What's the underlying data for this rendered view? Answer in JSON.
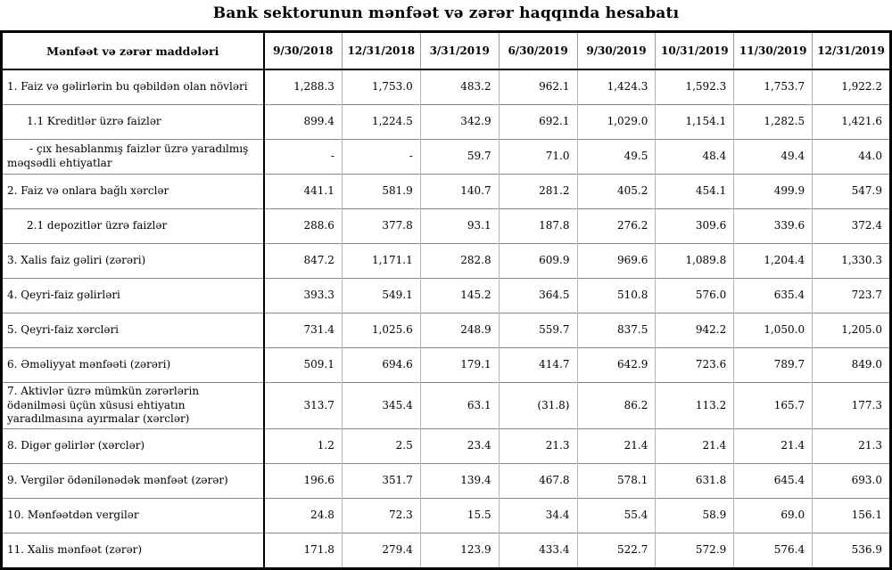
{
  "title": "Bank sektorunun mənfəət və zərər haqqında hesabatı",
  "table": {
    "header": [
      "Mənfəət və zərər maddələri",
      "9/30/2018",
      "12/31/2018",
      "3/31/2019",
      "6/30/2019",
      "9/30/2019",
      "10/31/2019",
      "11/30/2019",
      "12/31/2019"
    ],
    "rows": [
      {
        "label": "1. Faiz və gəlirlərin bu qəbildən olan növləri",
        "indent": 0,
        "values": [
          "1,288.3",
          "1,753.0",
          "483.2",
          "962.1",
          "1,424.3",
          "1,592.3",
          "1,753.7",
          "1,922.2"
        ]
      },
      {
        "label": "1.1 Kreditlər üzrə faizlər",
        "indent": 1,
        "values": [
          "899.4",
          "1,224.5",
          "342.9",
          "692.1",
          "1,029.0",
          "1,154.1",
          "1,282.5",
          "1,421.6"
        ]
      },
      {
        "label": "- çıx hesablanmış faizlər üzrə yaradılmış məqsədli ehtiyatlar",
        "indent": 2,
        "values": [
          "-",
          "-",
          "59.7",
          "71.0",
          "49.5",
          "48.4",
          "49.4",
          "44.0"
        ]
      },
      {
        "label": "2. Faiz və onlara bağlı xərclər",
        "indent": 0,
        "values": [
          "441.1",
          "581.9",
          "140.7",
          "281.2",
          "405.2",
          "454.1",
          "499.9",
          "547.9"
        ]
      },
      {
        "label": "2.1 depozitlər üzrə faizlər",
        "indent": 1,
        "values": [
          "288.6",
          "377.8",
          "93.1",
          "187.8",
          "276.2",
          "309.6",
          "339.6",
          "372.4"
        ]
      },
      {
        "label": "3. Xalis faiz gəliri (zərəri)",
        "indent": 0,
        "values": [
          "847.2",
          "1,171.1",
          "282.8",
          "609.9",
          "969.6",
          "1,089.8",
          "1,204.4",
          "1,330.3"
        ]
      },
      {
        "label": "4. Qeyri-faiz gəlirləri",
        "indent": 0,
        "values": [
          "393.3",
          "549.1",
          "145.2",
          "364.5",
          "510.8",
          "576.0",
          "635.4",
          "723.7"
        ]
      },
      {
        "label": "5. Qeyri-faiz xərcləri",
        "indent": 0,
        "values": [
          "731.4",
          "1,025.6",
          "248.9",
          "559.7",
          "837.5",
          "942.2",
          "1,050.0",
          "1,205.0"
        ]
      },
      {
        "label": "6. Əməliyyat mənfəəti (zərəri)",
        "indent": 0,
        "values": [
          "509.1",
          "694.6",
          "179.1",
          "414.7",
          "642.9",
          "723.6",
          "789.7",
          "849.0"
        ]
      },
      {
        "label": "7. Aktivlər üzrə mümkün zərərlərin ödənilməsi üçün xüsusi ehtiyatın yaradılmasına ayırmalar (xərclər)",
        "indent": 0,
        "values": [
          "313.7",
          "345.4",
          "63.1",
          "(31.8)",
          "86.2",
          "113.2",
          "165.7",
          "177.3"
        ]
      },
      {
        "label": "8. Digər gəlirlər (xərclər)",
        "indent": 0,
        "values": [
          "1.2",
          "2.5",
          "23.4",
          "21.3",
          "21.4",
          "21.4",
          "21.4",
          "21.3"
        ]
      },
      {
        "label": "9. Vergilər ödənilənədək mənfəət (zərər)",
        "indent": 0,
        "values": [
          "196.6",
          "351.7",
          "139.4",
          "467.8",
          "578.1",
          "631.8",
          "645.4",
          "693.0"
        ]
      },
      {
        "label": "10. Mənfəətdən vergilər",
        "indent": 0,
        "values": [
          "24.8",
          "72.3",
          "15.5",
          "34.4",
          "55.4",
          "58.9",
          "69.0",
          "156.1"
        ]
      },
      {
        "label": "11. Xalis mənfəət (zərər)",
        "indent": 0,
        "values": [
          "171.8",
          "279.4",
          "123.9",
          "433.4",
          "522.7",
          "572.9",
          "576.4",
          "536.9"
        ]
      }
    ]
  },
  "chart_data": {
    "type": "table",
    "title": "Bank sektorunun mənfəət və zərər haqqında hesabatı",
    "columns": [
      "Mənfəət və zərər maddələri",
      "9/30/2018",
      "12/31/2018",
      "3/31/2019",
      "6/30/2019",
      "9/30/2019",
      "10/31/2019",
      "11/30/2019",
      "12/31/2019"
    ],
    "rows": [
      [
        "1. Faiz və gəlirlərin bu qəbildən olan növləri",
        1288.3,
        1753.0,
        483.2,
        962.1,
        1424.3,
        1592.3,
        1753.7,
        1922.2
      ],
      [
        "1.1 Kreditlər üzrə faizlər",
        899.4,
        1224.5,
        342.9,
        692.1,
        1029.0,
        1154.1,
        1282.5,
        1421.6
      ],
      [
        "- çıx hesablanmış faizlər üzrə yaradılmış məqsədli ehtiyatlar",
        null,
        null,
        59.7,
        71.0,
        49.5,
        48.4,
        49.4,
        44.0
      ],
      [
        "2. Faiz və onlara bağlı xərclər",
        441.1,
        581.9,
        140.7,
        281.2,
        405.2,
        454.1,
        499.9,
        547.9
      ],
      [
        "2.1 depozitlər üzrə faizlər",
        288.6,
        377.8,
        93.1,
        187.8,
        276.2,
        309.6,
        339.6,
        372.4
      ],
      [
        "3. Xalis faiz gəliri (zərəri)",
        847.2,
        1171.1,
        282.8,
        609.9,
        969.6,
        1089.8,
        1204.4,
        1330.3
      ],
      [
        "4. Qeyri-faiz gəlirləri",
        393.3,
        549.1,
        145.2,
        364.5,
        510.8,
        576.0,
        635.4,
        723.7
      ],
      [
        "5. Qeyri-faiz xərcləri",
        731.4,
        1025.6,
        248.9,
        559.7,
        837.5,
        942.2,
        1050.0,
        1205.0
      ],
      [
        "6. Əməliyyat mənfəəti (zərəri)",
        509.1,
        694.6,
        179.1,
        414.7,
        642.9,
        723.6,
        789.7,
        849.0
      ],
      [
        "7. Aktivlər üzrə mümkün zərərlərin ödənilməsi üçün xüsusi ehtiyatın yaradılmasına ayırmalar (xərclər)",
        313.7,
        345.4,
        63.1,
        -31.8,
        86.2,
        113.2,
        165.7,
        177.3
      ],
      [
        "8. Digər gəlirlər (xərclər)",
        1.2,
        2.5,
        23.4,
        21.3,
        21.4,
        21.4,
        21.4,
        21.3
      ],
      [
        "9. Vergilər ödənilənədək mənfəət (zərər)",
        196.6,
        351.7,
        139.4,
        467.8,
        578.1,
        631.8,
        645.4,
        693.0
      ],
      [
        "10. Mənfəətdən vergilər",
        24.8,
        72.3,
        15.5,
        34.4,
        55.4,
        58.9,
        69.0,
        156.1
      ],
      [
        "11. Xalis mənfəət (zərər)",
        171.8,
        279.4,
        123.9,
        433.4,
        522.7,
        572.9,
        576.4,
        536.9
      ]
    ]
  }
}
